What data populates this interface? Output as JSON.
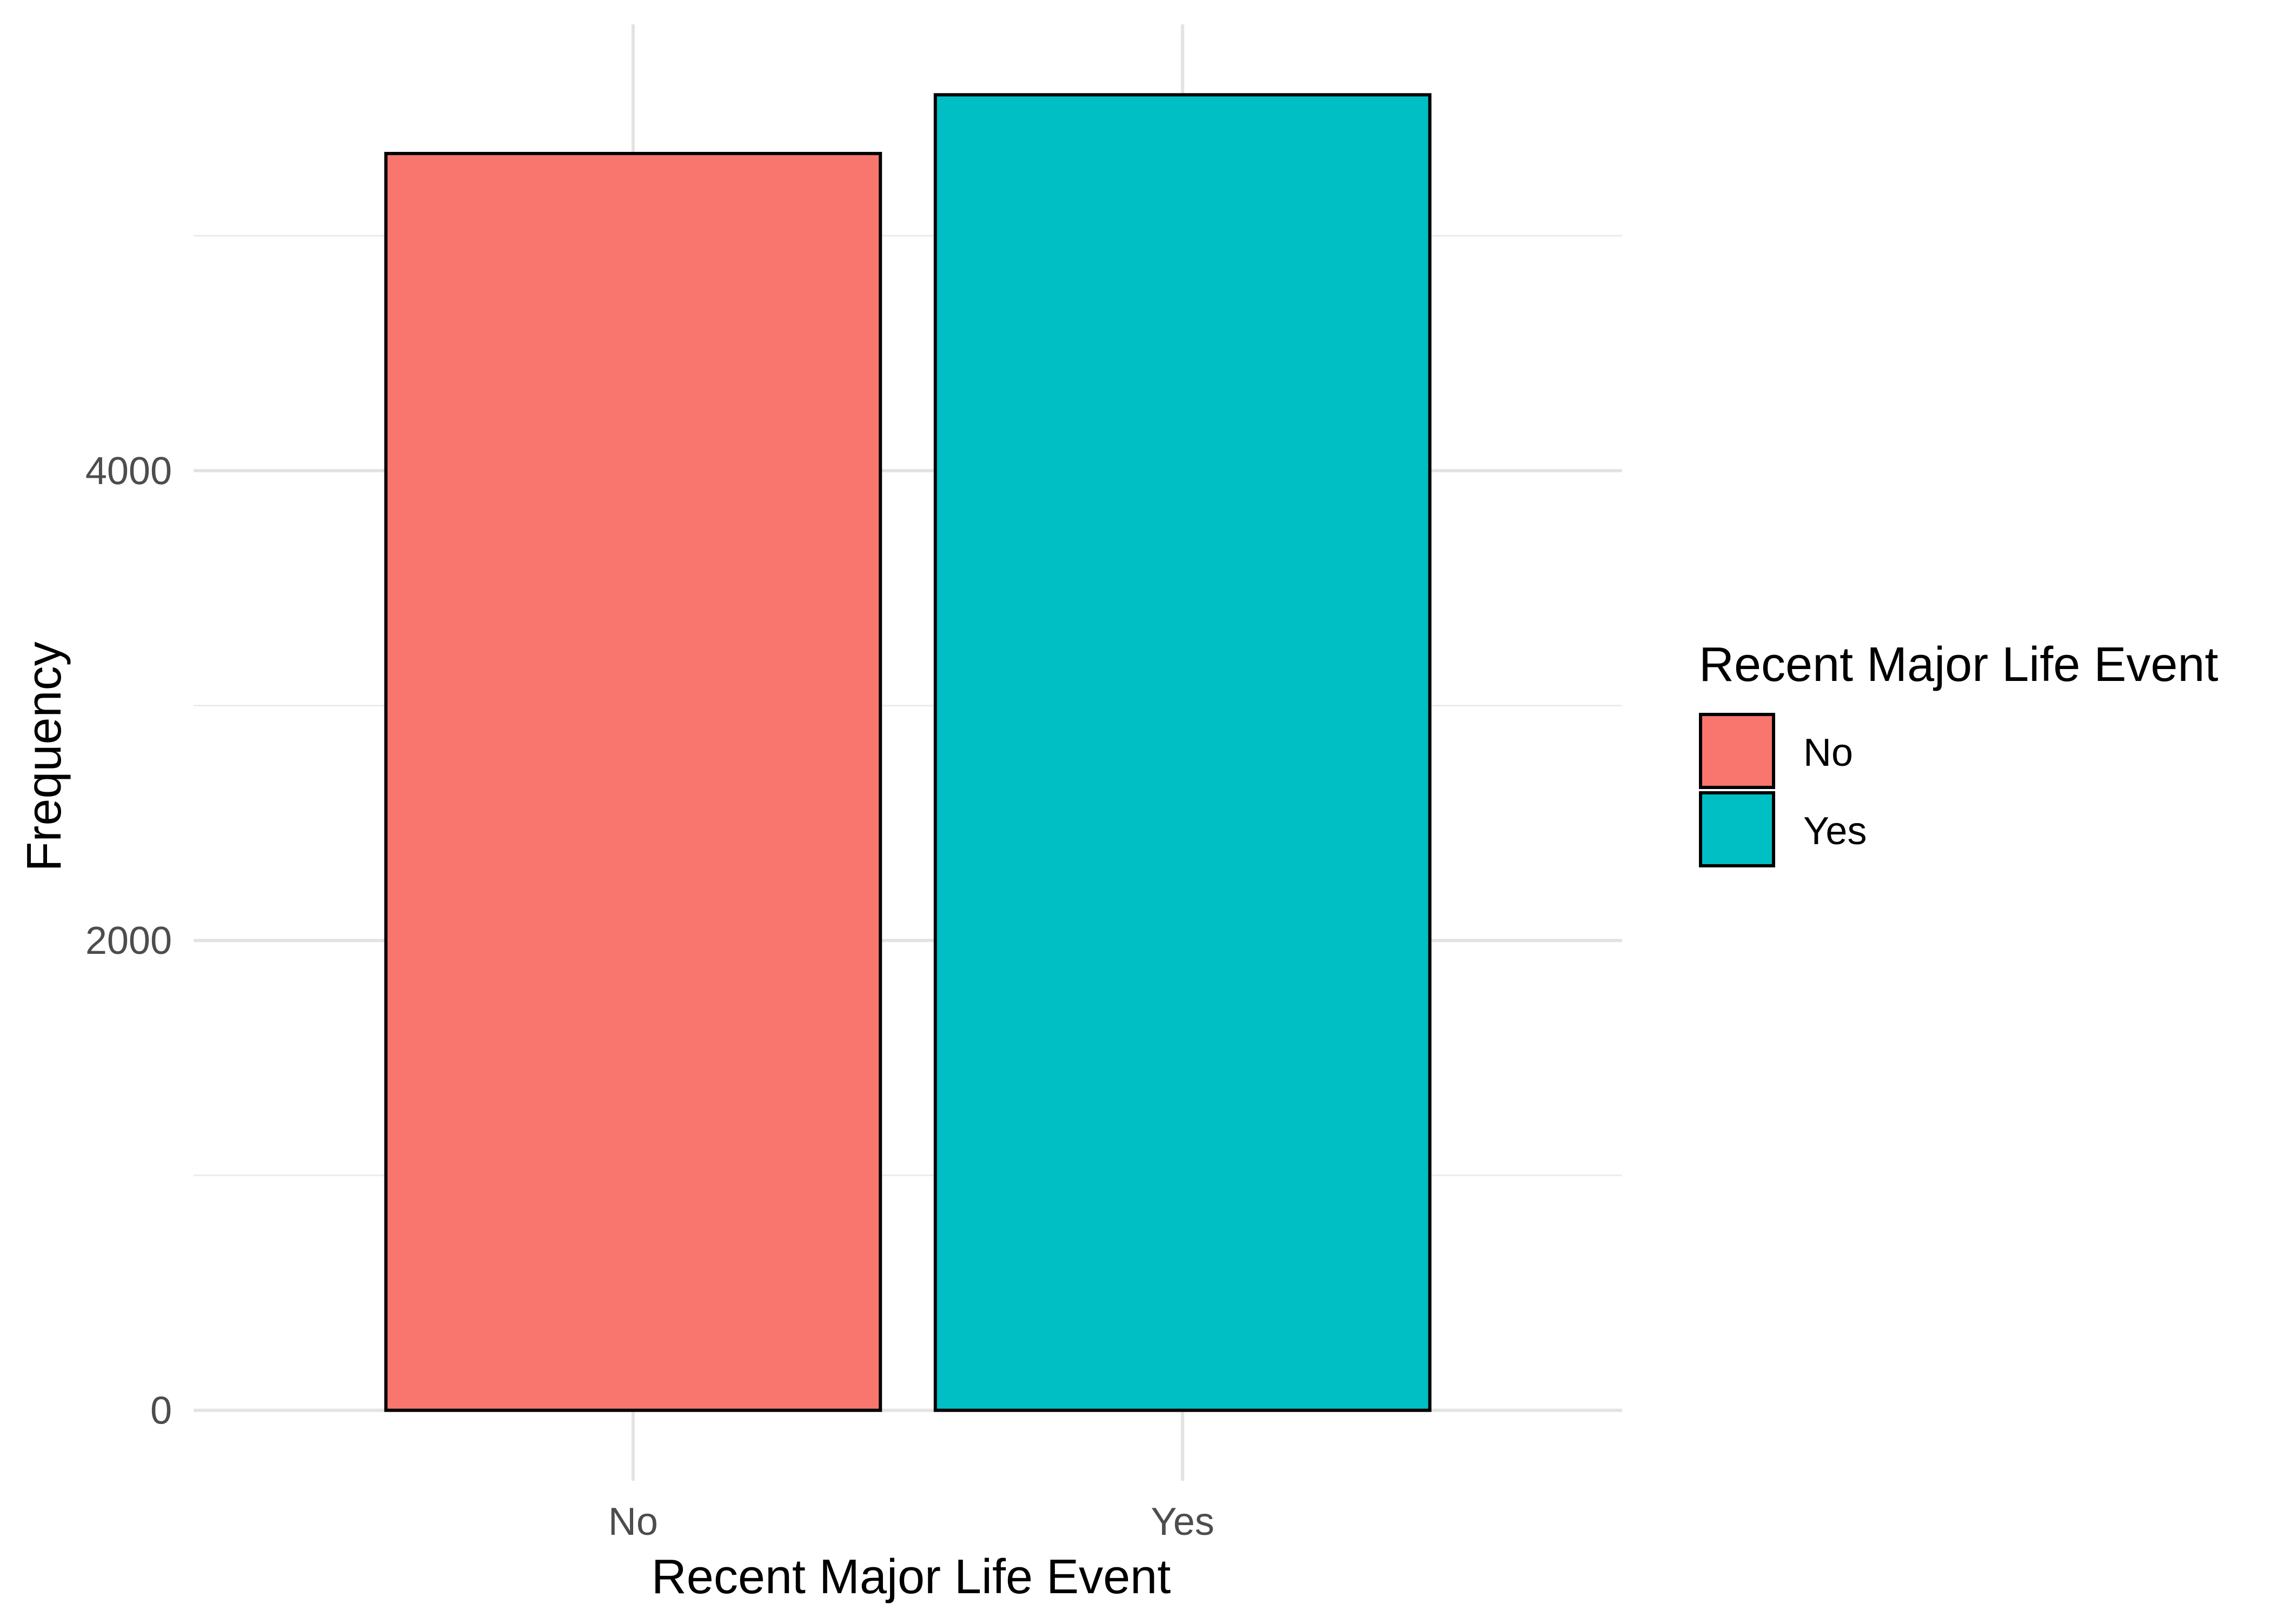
{
  "chart_data": {
    "type": "bar",
    "categories": [
      "No",
      "Yes"
    ],
    "values": [
      5350,
      5600
    ],
    "xlabel": "Recent Major Life Event",
    "ylabel": "Frequency",
    "ylim": [
      -300,
      5900
    ],
    "yticks": [
      0,
      2000,
      4000
    ],
    "y_tick_labels": [
      "0",
      "2000",
      "4000"
    ],
    "y_minor_ticks": [
      1000,
      3000,
      5000
    ],
    "grid": true,
    "legend": {
      "title": "Recent Major Life Event",
      "position": "right",
      "items": [
        {
          "label": "No",
          "color": "#F8766D"
        },
        {
          "label": "Yes",
          "color": "#00BFC4"
        }
      ]
    },
    "colors": [
      "#F8766D",
      "#00BFC4"
    ]
  }
}
